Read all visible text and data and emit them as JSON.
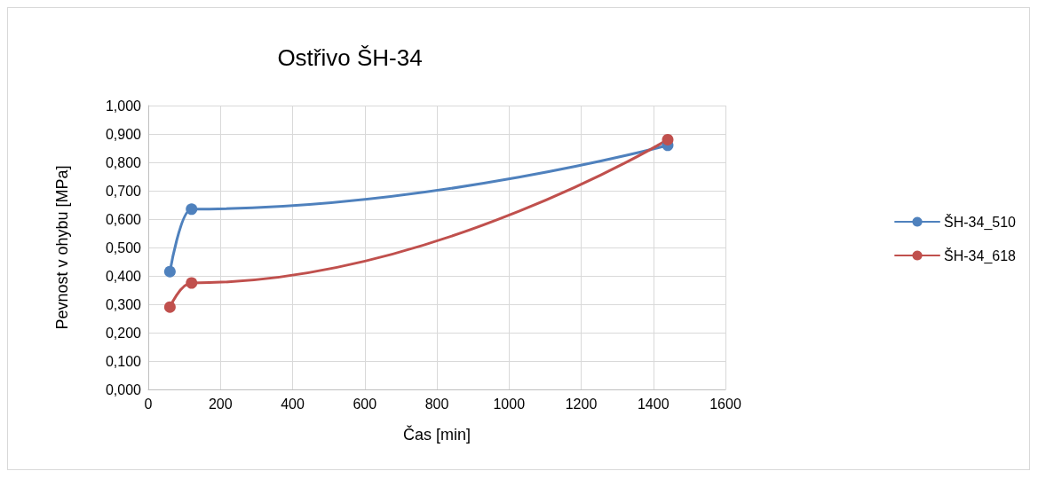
{
  "chart_data": {
    "type": "line",
    "title": "Ostřivo ŠH-34",
    "xlabel": "Čas [min]",
    "ylabel": "Pevnost v ohybu [MPa]",
    "series": [
      {
        "name": "ŠH-34_510",
        "color": "#4f81bd",
        "x": [
          60,
          120,
          1440
        ],
        "values": [
          0.415,
          0.635,
          0.86
        ]
      },
      {
        "name": "ŠH-34_618",
        "color": "#c0504d",
        "x": [
          60,
          120,
          1440
        ],
        "values": [
          0.29,
          0.375,
          0.88
        ]
      }
    ],
    "xlim": [
      0,
      1600
    ],
    "xticks": [
      0,
      200,
      400,
      600,
      800,
      1000,
      1200,
      1400,
      1600
    ],
    "ylim": [
      0,
      1
    ],
    "yticks": [
      {
        "value": 0,
        "label": "0,000"
      },
      {
        "value": 0.1,
        "label": "0,100"
      },
      {
        "value": 0.2,
        "label": "0,200"
      },
      {
        "value": 0.3,
        "label": "0,300"
      },
      {
        "value": 0.4,
        "label": "0,400"
      },
      {
        "value": 0.5,
        "label": "0,500"
      },
      {
        "value": 0.6,
        "label": "0,600"
      },
      {
        "value": 0.7,
        "label": "0,700"
      },
      {
        "value": 0.8,
        "label": "0,800"
      },
      {
        "value": 0.9,
        "label": "0,900"
      },
      {
        "value": 1,
        "label": "1,000"
      }
    ],
    "grid": true,
    "legend": "right",
    "marker": "circle",
    "line_style": "solid"
  }
}
